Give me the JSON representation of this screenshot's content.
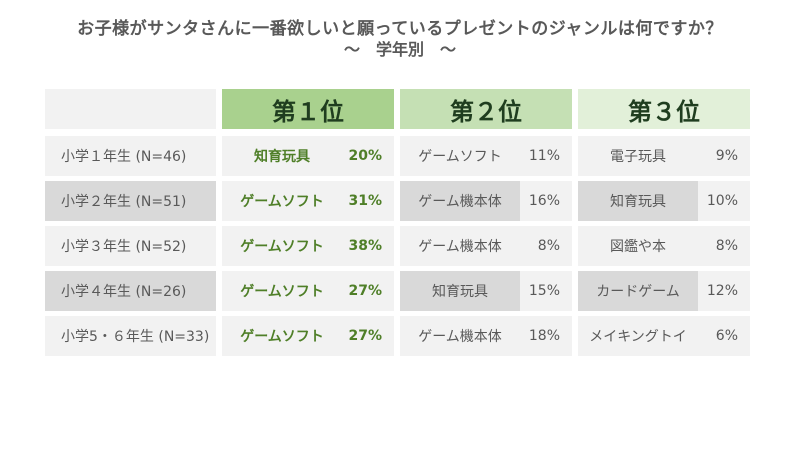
{
  "title": "お子様がサンタさんに一番欲しいと願っているプレゼントのジャンルは何ですか？",
  "subtitle": "〜　学年別　〜",
  "colors": {
    "rank1_header": "#a9d18e",
    "rank2_header": "#c5e0b4",
    "rank3_header": "#e2f0d9",
    "row_light": "#f2f2f2",
    "row_dark": "#d9d9d9",
    "rank1_text": "#4f7f28"
  },
  "chart_data": {
    "type": "table",
    "headers": [
      "第１位",
      "第２位",
      "第３位"
    ],
    "rows": [
      {
        "group": "小学１年生 (N=46)",
        "items": [
          {
            "genre": "知育玩具",
            "pct": "20%"
          },
          {
            "genre": "ゲームソフト",
            "pct": "11%"
          },
          {
            "genre": "電子玩具",
            "pct": "9%"
          }
        ]
      },
      {
        "group": "小学２年生 (N=51)",
        "items": [
          {
            "genre": "ゲームソフト",
            "pct": "31%"
          },
          {
            "genre": "ゲーム機本体",
            "pct": "16%"
          },
          {
            "genre": "知育玩具",
            "pct": "10%"
          }
        ]
      },
      {
        "group": "小学３年生 (N=52)",
        "items": [
          {
            "genre": "ゲームソフト",
            "pct": "38%"
          },
          {
            "genre": "ゲーム機本体",
            "pct": "8%"
          },
          {
            "genre": "図鑑や本",
            "pct": "8%"
          }
        ]
      },
      {
        "group": "小学４年生 (N=26)",
        "items": [
          {
            "genre": "ゲームソフト",
            "pct": "27%"
          },
          {
            "genre": "知育玩具",
            "pct": "15%"
          },
          {
            "genre": "カードゲーム",
            "pct": "12%"
          }
        ]
      },
      {
        "group": "小学5・６年生 (N=33)",
        "items": [
          {
            "genre": "ゲームソフト",
            "pct": "27%"
          },
          {
            "genre": "ゲーム機本体",
            "pct": "18%"
          },
          {
            "genre": "メイキングトイ",
            "pct": "6%"
          }
        ]
      }
    ]
  }
}
